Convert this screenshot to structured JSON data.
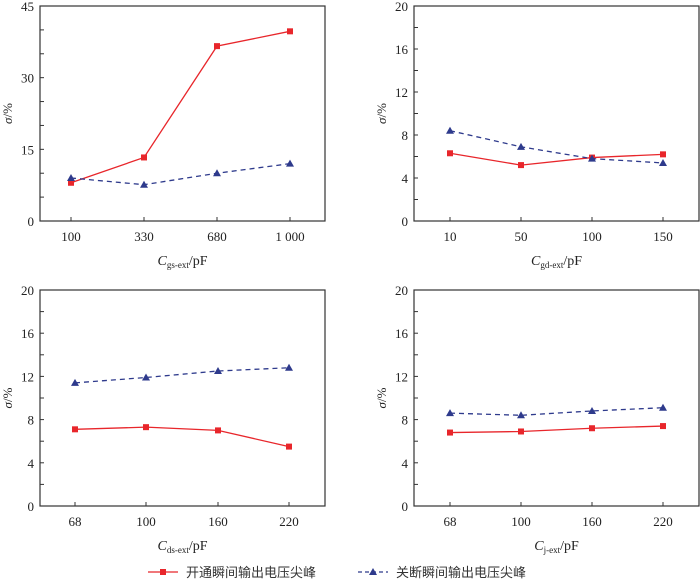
{
  "colors": {
    "on_series": "#e8262b",
    "off_series": "#2e3a8c",
    "axis": "#333333"
  },
  "legend": {
    "placement": "bottom-center",
    "items": [
      {
        "label": "开通瞬间输出电压尖峰",
        "marker": "square",
        "line": "solid",
        "color_key": "on_series"
      },
      {
        "label": "关断瞬间输出电压尖峰",
        "marker": "triangle",
        "line": "dashed",
        "color_key": "off_series"
      }
    ]
  },
  "chart_data": [
    {
      "type": "line",
      "panel": "top-left",
      "title": "",
      "xlabel": {
        "main": "C",
        "sub": "gs-ext",
        "unit": "/pF"
      },
      "ylabel": "σ/%",
      "categories": [
        "100",
        "330",
        "680",
        "1 000"
      ],
      "ylim": [
        0,
        45
      ],
      "y_major_ticks": [
        0,
        15,
        30,
        45
      ],
      "y_minor_step": 5,
      "grid": false,
      "series": [
        {
          "name": "开通瞬间输出电压尖峰",
          "values": [
            8.0,
            13.3,
            36.6,
            39.7
          ]
        },
        {
          "name": "关断瞬间输出电压尖峰",
          "values": [
            9.0,
            7.6,
            10.0,
            12.0
          ]
        }
      ]
    },
    {
      "type": "line",
      "panel": "top-right",
      "title": "",
      "xlabel": {
        "main": "C",
        "sub": "gd-ext",
        "unit": "/pF"
      },
      "ylabel": "σ/%",
      "categories": [
        "10",
        "50",
        "100",
        "150"
      ],
      "ylim": [
        0,
        20
      ],
      "y_major_ticks": [
        0,
        4,
        8,
        12,
        16,
        20
      ],
      "y_minor_step": 2,
      "grid": false,
      "series": [
        {
          "name": "开通瞬间输出电压尖峰",
          "values": [
            6.3,
            5.2,
            5.9,
            6.2
          ]
        },
        {
          "name": "关断瞬间输出电压尖峰",
          "values": [
            8.4,
            6.9,
            5.8,
            5.4
          ]
        }
      ]
    },
    {
      "type": "line",
      "panel": "bottom-left",
      "title": "",
      "xlabel": {
        "main": "C",
        "sub": "ds-ext",
        "unit": "/pF"
      },
      "ylabel": "σ/%",
      "categories": [
        "68",
        "100",
        "160",
        "220"
      ],
      "ylim": [
        0,
        20
      ],
      "y_major_ticks": [
        0,
        4,
        8,
        12,
        16,
        20
      ],
      "y_minor_step": 2,
      "grid": false,
      "series": [
        {
          "name": "开通瞬间输出电压尖峰",
          "values": [
            7.1,
            7.3,
            7.0,
            5.5
          ]
        },
        {
          "name": "关断瞬间输出电压尖峰",
          "values": [
            11.4,
            11.9,
            12.5,
            12.8
          ]
        }
      ]
    },
    {
      "type": "line",
      "panel": "bottom-right",
      "title": "",
      "xlabel": {
        "main": "C",
        "sub": "j-ext",
        "unit": "/pF"
      },
      "ylabel": "σ/%",
      "categories": [
        "68",
        "100",
        "160",
        "220"
      ],
      "ylim": [
        0,
        20
      ],
      "y_major_ticks": [
        0,
        4,
        8,
        12,
        16,
        20
      ],
      "y_minor_step": 2,
      "grid": false,
      "series": [
        {
          "name": "开通瞬间输出电压尖峰",
          "values": [
            6.8,
            6.9,
            7.2,
            7.4
          ]
        },
        {
          "name": "关断瞬间输出电压尖峰",
          "values": [
            8.6,
            8.4,
            8.8,
            9.1
          ]
        }
      ]
    }
  ]
}
